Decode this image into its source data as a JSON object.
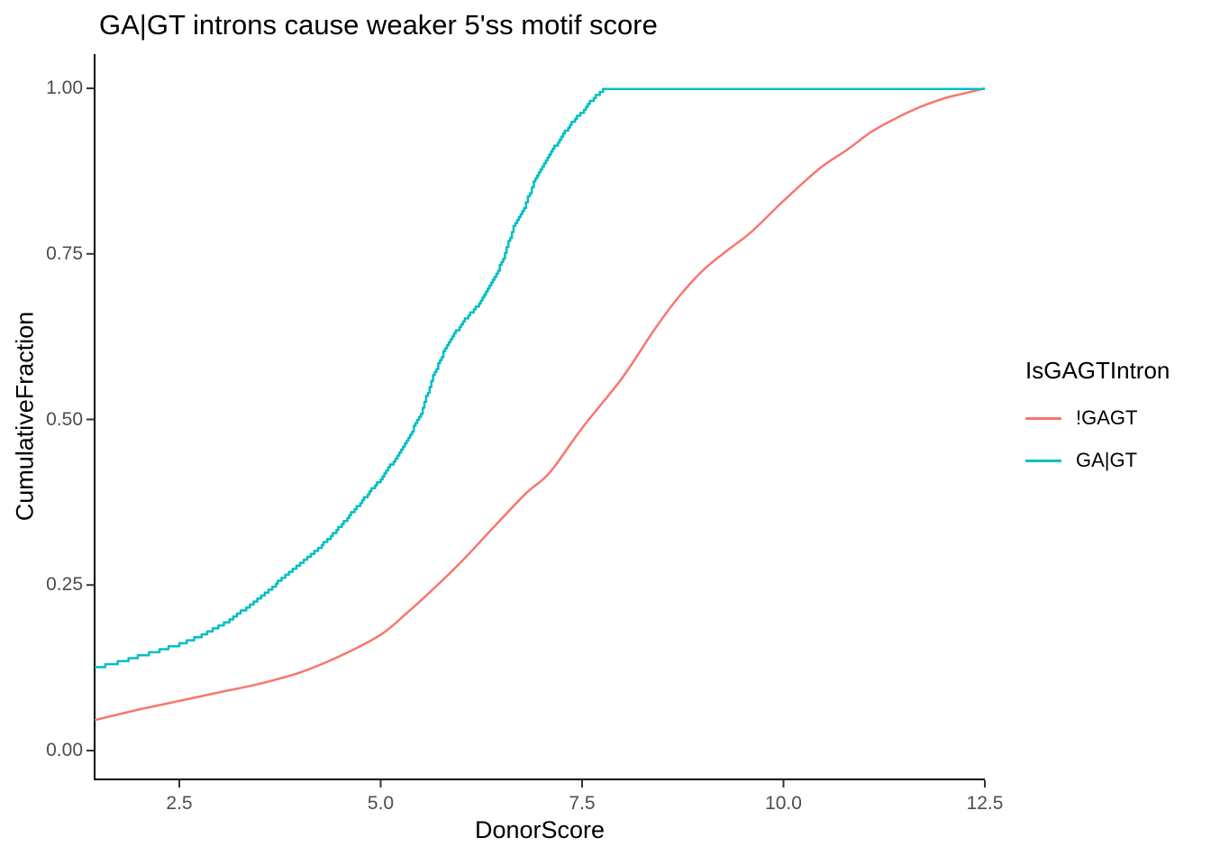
{
  "title": "GA|GT introns cause weaker 5'ss motif score",
  "axes": {
    "x": {
      "label": "DonorScore",
      "ticks": [
        "2.5",
        "5.0",
        "7.5",
        "10.0",
        "12.5"
      ]
    },
    "y": {
      "label": "CumulativeFraction",
      "ticks": [
        "0.00",
        "0.25",
        "0.50",
        "0.75",
        "1.00"
      ]
    }
  },
  "legend": {
    "title": "IsGAGTIntron",
    "items": [
      {
        "label": "!GAGT",
        "color": "#F8766D"
      },
      {
        "label": "GA|GT",
        "color": "#00BFC4"
      }
    ]
  },
  "colors": {
    "not_gagt": "#F8766D",
    "gagt": "#00BFC4",
    "axis_line": "#000000",
    "tick_mark": "#333333",
    "tick_text": "#4d4d4d",
    "background": "#ffffff"
  },
  "chart_data": {
    "type": "line",
    "subtype": "ecdf",
    "title": "GA|GT introns cause weaker 5'ss motif score",
    "xlabel": "DonorScore",
    "ylabel": "CumulativeFraction",
    "xlim": [
      1.45,
      12.5
    ],
    "ylim": [
      0,
      1
    ],
    "x_ticks": [
      2.5,
      5.0,
      7.5,
      10.0,
      12.5
    ],
    "y_ticks": [
      0.0,
      0.25,
      0.5,
      0.75,
      1.0
    ],
    "grid": false,
    "legend_position": "right",
    "legend_title": "IsGAGTIntron",
    "series": [
      {
        "name": "!GAGT",
        "color": "#F8766D",
        "style": "smooth",
        "points": [
          [
            1.45,
            0.046
          ],
          [
            2.0,
            0.062
          ],
          [
            2.5,
            0.075
          ],
          [
            3.0,
            0.088
          ],
          [
            3.5,
            0.101
          ],
          [
            4.0,
            0.118
          ],
          [
            4.5,
            0.143
          ],
          [
            5.0,
            0.175
          ],
          [
            5.3,
            0.205
          ],
          [
            5.6,
            0.238
          ],
          [
            6.0,
            0.285
          ],
          [
            6.4,
            0.337
          ],
          [
            6.8,
            0.388
          ],
          [
            7.1,
            0.42
          ],
          [
            7.5,
            0.487
          ],
          [
            8.0,
            0.563
          ],
          [
            8.4,
            0.636
          ],
          [
            8.7,
            0.685
          ],
          [
            9.0,
            0.725
          ],
          [
            9.3,
            0.755
          ],
          [
            9.6,
            0.783
          ],
          [
            10.0,
            0.83
          ],
          [
            10.45,
            0.879
          ],
          [
            10.8,
            0.908
          ],
          [
            11.1,
            0.935
          ],
          [
            11.4,
            0.955
          ],
          [
            11.7,
            0.972
          ],
          [
            12.0,
            0.985
          ],
          [
            12.2,
            0.991
          ],
          [
            12.5,
            1.0
          ]
        ]
      },
      {
        "name": "GA|GT",
        "color": "#00BFC4",
        "style": "step",
        "step_size": 0.0045,
        "points": [
          [
            1.45,
            0.125
          ],
          [
            1.8,
            0.135
          ],
          [
            2.1,
            0.146
          ],
          [
            2.5,
            0.16
          ],
          [
            2.8,
            0.175
          ],
          [
            3.1,
            0.195
          ],
          [
            3.4,
            0.222
          ],
          [
            3.7,
            0.252
          ],
          [
            4.0,
            0.283
          ],
          [
            4.2,
            0.302
          ],
          [
            4.45,
            0.332
          ],
          [
            4.7,
            0.368
          ],
          [
            5.0,
            0.41
          ],
          [
            5.3,
            0.462
          ],
          [
            5.5,
            0.51
          ],
          [
            5.65,
            0.565
          ],
          [
            5.8,
            0.607
          ],
          [
            6.0,
            0.645
          ],
          [
            6.2,
            0.672
          ],
          [
            6.35,
            0.7
          ],
          [
            6.5,
            0.737
          ],
          [
            6.65,
            0.79
          ],
          [
            6.78,
            0.82
          ],
          [
            6.9,
            0.858
          ],
          [
            7.05,
            0.89
          ],
          [
            7.2,
            0.92
          ],
          [
            7.35,
            0.945
          ],
          [
            7.5,
            0.965
          ],
          [
            7.62,
            0.983
          ],
          [
            7.72,
            0.994
          ],
          [
            7.78,
            1.0
          ],
          [
            12.5,
            1.0
          ]
        ]
      }
    ]
  }
}
